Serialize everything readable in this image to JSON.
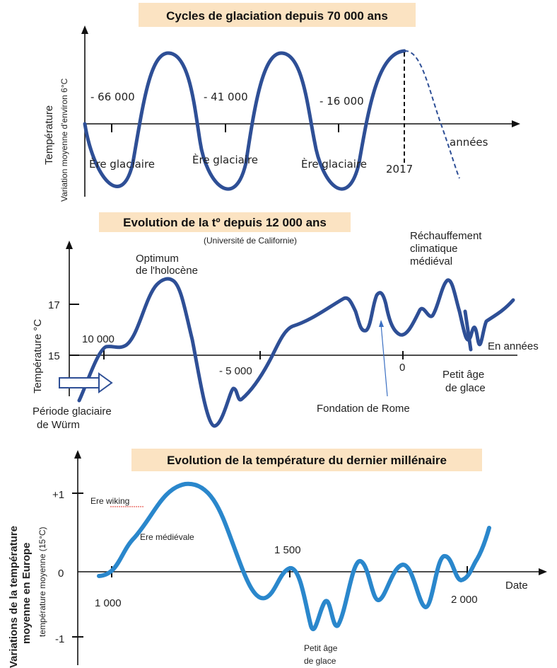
{
  "chart_data": [
    {
      "type": "line",
      "title": "Cycles de glaciation depuis 70 000 ans",
      "ylabel": "Température",
      "ylabel_sub": "Variation moyenne d'environ 6°C",
      "xlabel": "années",
      "annotations": {
        "tick_labels": [
          "- 66 000",
          "- 41 000",
          "- 16 000",
          "2017"
        ],
        "periods": [
          "Ère glaciaire",
          "Ère glaciaire",
          "Ère glaciaire"
        ]
      },
      "series": [
        {
          "x": [
            -70000,
            -66000,
            -63000,
            -59000,
            -55000,
            -51000,
            -46000,
            -41000,
            -37000,
            -33000,
            -29000,
            -25000,
            -20000,
            -16000,
            -12000,
            -8000,
            -4000,
            0,
            2017
          ],
          "values": [
            0,
            -3,
            -3,
            0,
            3,
            3,
            0,
            -3,
            -3,
            0,
            3,
            3,
            0,
            -3,
            -3,
            0,
            3,
            3,
            3
          ]
        }
      ],
      "projection": {
        "x": [
          2017,
          4000,
          7000,
          10000,
          13000
        ],
        "values": [
          3,
          2.5,
          0,
          -2,
          -3
        ]
      }
    },
    {
      "type": "line",
      "title": "Evolution de la tº depuis 12 000 ans",
      "subtitle": "(Université de Californie)",
      "ylabel": "Température °C",
      "xlabel": "En années",
      "yticks": [
        "17",
        "15"
      ],
      "xticks": [
        "10 000",
        "- 5 000",
        "0"
      ],
      "annotations": [
        "Optimum de l'holocène",
        "Réchauffement climatique médiéval",
        "Période glaciaire de Würm",
        "Fondation de Rome",
        "Petit âge de glace"
      ],
      "series": [
        {
          "x": [
            -12000,
            -11000,
            -10000,
            -9000,
            -8200,
            -7200,
            -6200,
            -5600,
            -5200,
            -4800,
            -4100,
            -3300,
            -2200,
            -1600,
            -1200,
            -900,
            -700,
            -500,
            -200,
            0,
            300,
            600,
            900,
            1200,
            1400,
            1500,
            1650,
            1800,
            2000
          ],
          "values": [
            13.8,
            15.2,
            15.5,
            16.5,
            17.6,
            15.5,
            13.5,
            14.1,
            14.3,
            14.6,
            16.1,
            16.7,
            17.2,
            16.3,
            17.4,
            16.6,
            16.5,
            16.3,
            16.7,
            16.8,
            17.5,
            14.6,
            15.7,
            14.6,
            15.5,
            16.0,
            16.6,
            16.6,
            17.1
          ]
        }
      ]
    },
    {
      "type": "line",
      "title": "Evolution de la température du dernier millénaire",
      "ylabel": "Variations de la température moyenne en Europe",
      "ylabel_sub": "température moyenne (15°C)",
      "xlabel": "Date",
      "yticks": [
        "+1",
        "0",
        "-1"
      ],
      "xticks": [
        "1 000",
        "1 500",
        "2 000"
      ],
      "ylim": [
        -1,
        1
      ],
      "annotations": [
        "Ere wiking",
        "Ere médiévale",
        "Petit âge de glace"
      ],
      "series": [
        {
          "x": [
            990,
            1020,
            1080,
            1150,
            1200,
            1260,
            1330,
            1380,
            1440,
            1500,
            1560,
            1580,
            1600,
            1620,
            1640,
            1700,
            1740,
            1780,
            1840,
            1880,
            1920,
            1960,
            1990,
            2010
          ],
          "values": [
            -0.04,
            0.02,
            0.55,
            1.0,
            0.95,
            0.5,
            -0.2,
            -0.35,
            -0.06,
            0.0,
            -0.92,
            -0.55,
            -0.85,
            -0.03,
            0.12,
            -0.52,
            0.06,
            -0.45,
            0.15,
            -0.15,
            -0.1,
            0.0,
            0.3,
            0.55
          ]
        }
      ]
    }
  ]
}
